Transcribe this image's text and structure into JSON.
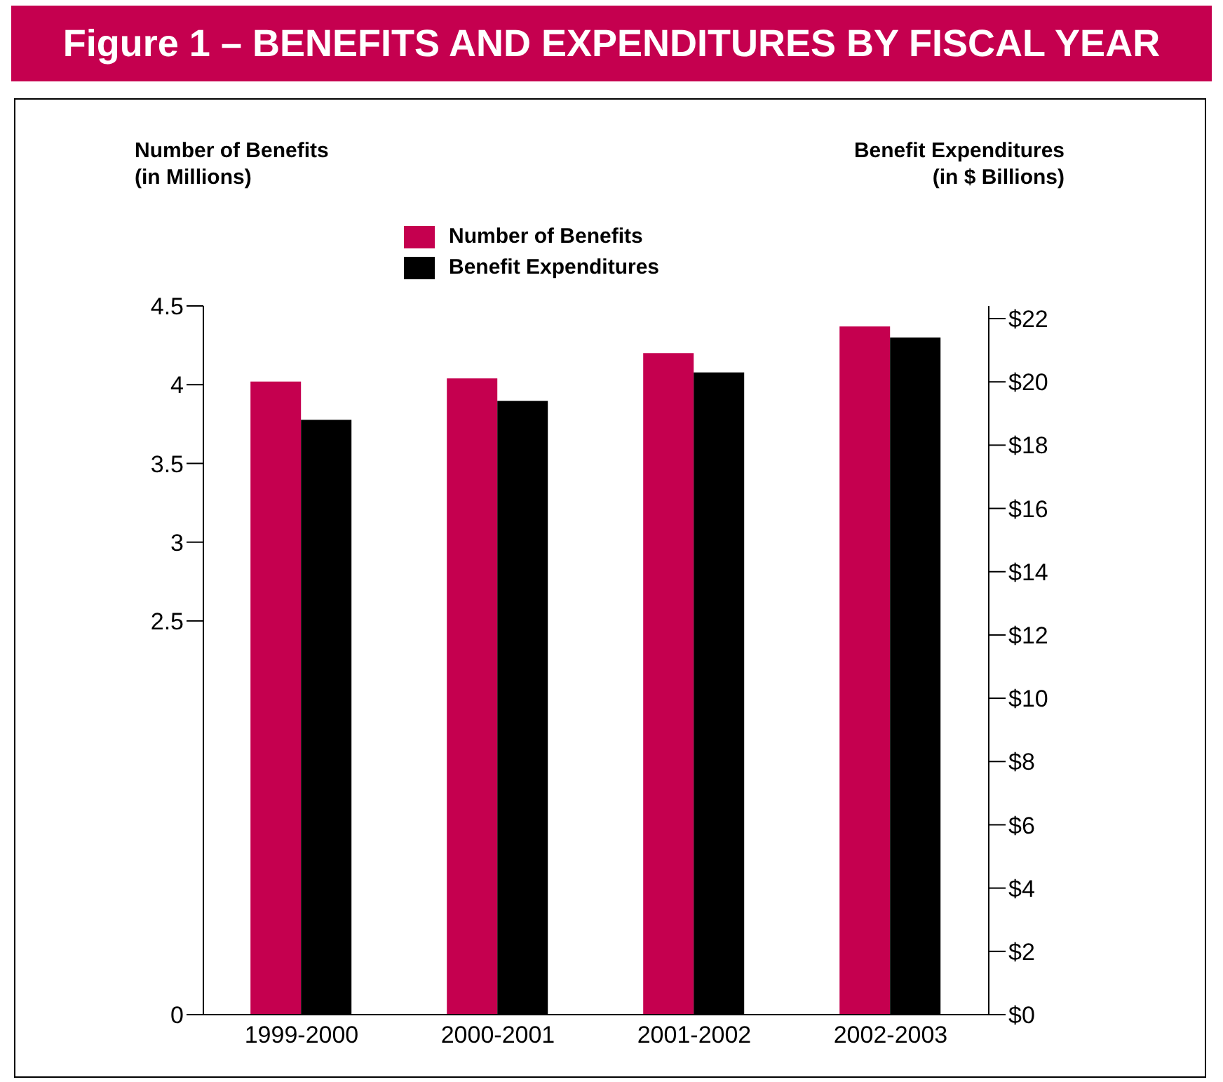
{
  "chart_data": {
    "type": "bar",
    "title": "Figure 1 – BENEFITS AND EXPENDITURES BY FISCAL YEAR",
    "ylabel": "Number of Benefits\n(in Millions)",
    "y2label": "Benefit Expenditures\n(in $ Billions)",
    "categories": [
      "1999-2000",
      "2000-2001",
      "2001-2002",
      "2002-2003"
    ],
    "series": [
      {
        "name": "Number of Benefits",
        "color": "#c5004f",
        "values": [
          4.02,
          4.04,
          4.2,
          4.37
        ]
      },
      {
        "name": "Benefit Expenditures",
        "color": "#000000",
        "axis": "y2",
        "values": [
          18.8,
          19.4,
          20.3,
          21.4
        ]
      }
    ],
    "ylim": [
      0,
      4.5
    ],
    "yticks": [
      0,
      2.5,
      3,
      3.5,
      4,
      4.5
    ],
    "y2lim": [
      0,
      22.4
    ],
    "y2ticks": [
      {
        "value": 0,
        "label": "$0"
      },
      {
        "value": 2,
        "label": "$2"
      },
      {
        "value": 4,
        "label": "$4"
      },
      {
        "value": 6,
        "label": "$6"
      },
      {
        "value": 8,
        "label": "$8"
      },
      {
        "value": 10,
        "label": "$10"
      },
      {
        "value": 12,
        "label": "$12"
      },
      {
        "value": 14,
        "label": "$14"
      },
      {
        "value": 16,
        "label": "$16"
      },
      {
        "value": 18,
        "label": "$18"
      },
      {
        "value": 20,
        "label": "$20"
      },
      {
        "value": 22,
        "label": "$22"
      }
    ],
    "legend": "top",
    "grid": false
  }
}
